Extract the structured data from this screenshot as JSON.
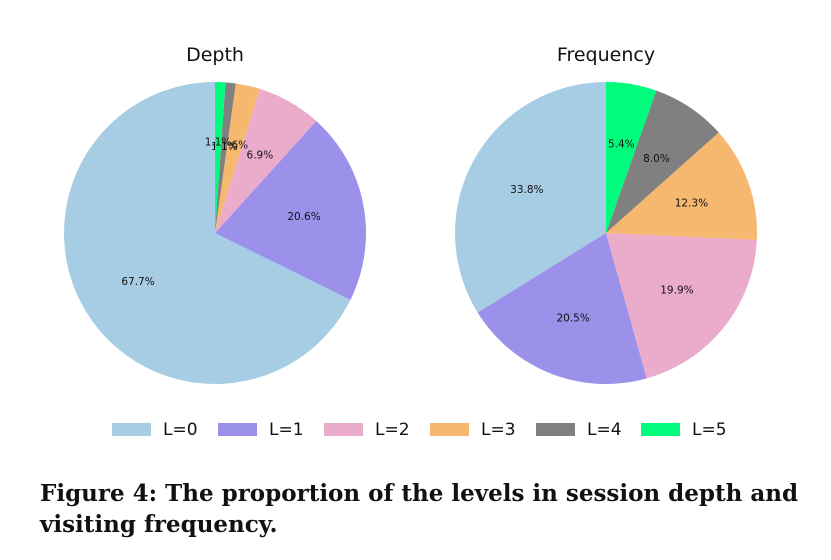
{
  "chart_data": [
    {
      "type": "pie",
      "title": "Depth",
      "labels": [
        "L=0",
        "L=1",
        "L=2",
        "L=3",
        "L=4",
        "L=5"
      ],
      "values": [
        67.7,
        20.6,
        6.9,
        2.6,
        1.1,
        1.1
      ],
      "value_labels": [
        "67.7%",
        "20.6%",
        "6.9%",
        "2.6%",
        "1.1%",
        "1.1%"
      ]
    },
    {
      "type": "pie",
      "title": "Frequency",
      "labels": [
        "L=0",
        "L=1",
        "L=2",
        "L=3",
        "L=4",
        "L=5"
      ],
      "values": [
        33.8,
        20.5,
        19.9,
        12.3,
        8.0,
        5.4
      ],
      "value_labels": [
        "33.8%",
        "20.5%",
        "19.9%",
        "12.3%",
        "8.0%",
        "5.4%"
      ]
    }
  ],
  "legend": {
    "placement": "bottom-center",
    "items": [
      {
        "label": "L=0",
        "color": "#a6cde3"
      },
      {
        "label": "L=1",
        "color": "#9b91ea"
      },
      {
        "label": "L=2",
        "color": "#ebaccc"
      },
      {
        "label": "L=3",
        "color": "#f5b86e"
      },
      {
        "label": "L=4",
        "color": "#808080"
      },
      {
        "label": "L=5",
        "color": "#00fc7c"
      }
    ]
  },
  "caption": "Figure 4: The proportion of the levels in session depth and visiting frequency."
}
